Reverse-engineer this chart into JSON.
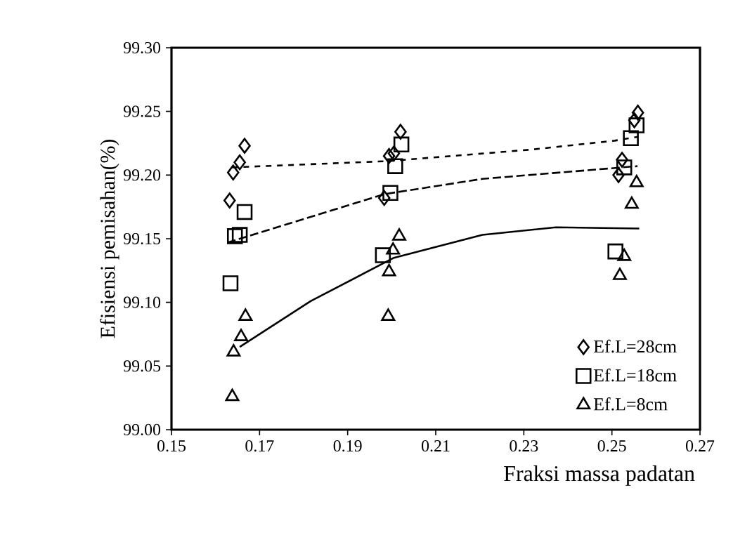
{
  "chart_data": {
    "type": "scatter",
    "xlabel": "Fraksi massa padatan",
    "ylabel": "Efisiensi pemisahan(%)",
    "xlim": [
      0.15,
      0.27
    ],
    "ylim": [
      99.0,
      99.3
    ],
    "xticks": [
      {
        "value": 0.15,
        "label": "0.15"
      },
      {
        "value": 0.17,
        "label": "0.17"
      },
      {
        "value": 0.19,
        "label": "0.19"
      },
      {
        "value": 0.21,
        "label": "0.21"
      },
      {
        "value": 0.23,
        "label": "0.23"
      },
      {
        "value": 0.25,
        "label": "0.25"
      },
      {
        "value": 0.27,
        "label": "0.27"
      }
    ],
    "yticks": [
      {
        "value": 99.0,
        "label": "99.00"
      },
      {
        "value": 99.05,
        "label": "99.05"
      },
      {
        "value": 99.1,
        "label": "99.10"
      },
      {
        "value": 99.15,
        "label": "99.15"
      },
      {
        "value": 99.2,
        "label": "99.20"
      },
      {
        "value": 99.25,
        "label": "99.25"
      },
      {
        "value": 99.3,
        "label": "99.30"
      }
    ],
    "grid": false,
    "legend": "bottom right",
    "series": [
      {
        "name": "Ef.L=28cm",
        "marker": "diamond",
        "color": "#000000",
        "x": [
          0.164,
          0.1655,
          0.1666,
          0.1632,
          0.1994,
          0.2005,
          0.202,
          0.1983,
          0.2515,
          0.2523,
          0.2551,
          0.2559
        ],
        "values": [
          99.202,
          99.21,
          99.223,
          99.18,
          99.215,
          99.217,
          99.234,
          99.182,
          99.2,
          99.212,
          99.243,
          99.249
        ]
      },
      {
        "name": "Ef.L=18cm",
        "marker": "square",
        "color": "#000000",
        "x": [
          0.1634,
          0.1644,
          0.1655,
          0.1666,
          0.198,
          0.1997,
          0.2008,
          0.2022,
          0.2508,
          0.2528,
          0.2543,
          0.2556
        ],
        "values": [
          99.115,
          99.152,
          99.153,
          99.171,
          99.137,
          99.186,
          99.207,
          99.224,
          99.14,
          99.206,
          99.229,
          99.239
        ]
      },
      {
        "name": "Ef.L=8cm",
        "marker": "triangle",
        "color": "#000000",
        "x": [
          0.1638,
          0.1641,
          0.1658,
          0.1668,
          0.1992,
          0.1994,
          0.2003,
          0.2017,
          0.2518,
          0.2528,
          0.2545,
          0.2556
        ],
        "values": [
          99.026,
          99.061,
          99.073,
          99.089,
          99.089,
          99.124,
          99.141,
          99.152,
          99.121,
          99.136,
          99.177,
          99.194
        ]
      },
      {
        "type": "line",
        "line_style": "dotted",
        "color": "#000000",
        "x": [
          0.1638,
          0.1994,
          0.2317,
          0.2506,
          0.2558
        ],
        "values": [
          99.206,
          99.211,
          99.22,
          99.227,
          99.23
        ]
      },
      {
        "type": "line",
        "line_style": "dashed",
        "color": "#000000",
        "x": [
          0.1627,
          0.1983,
          0.2206,
          0.2558
        ],
        "values": [
          99.147,
          99.185,
          99.197,
          99.207
        ]
      },
      {
        "type": "line",
        "line_style": "solid",
        "color": "#000000",
        "x": [
          0.1655,
          0.1816,
          0.2005,
          0.2206,
          0.2373,
          0.2562
        ],
        "values": [
          99.065,
          99.101,
          99.135,
          99.153,
          99.159,
          99.158
        ]
      }
    ]
  }
}
